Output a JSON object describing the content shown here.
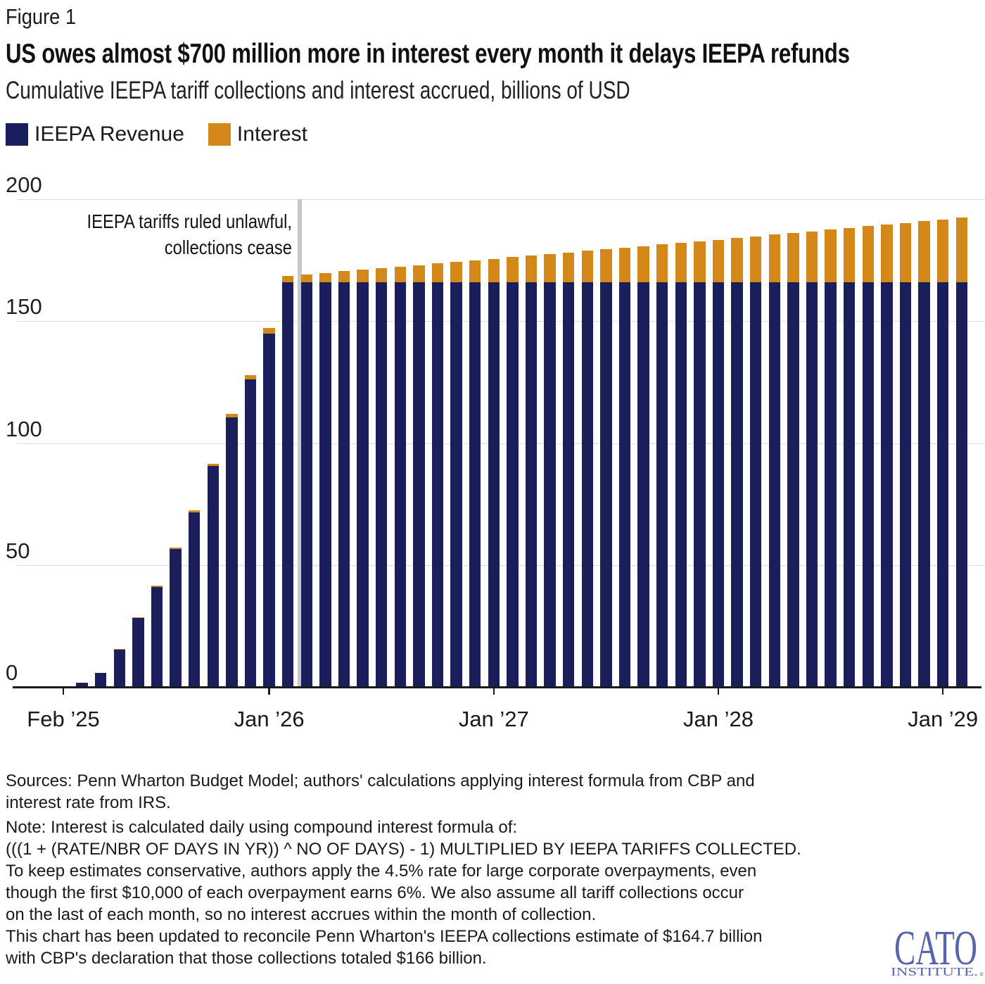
{
  "figure_label": "Figure 1",
  "title": "US owes almost $700 million more in interest every month it delays IEEPA refunds",
  "subtitle": "Cumulative IEEPA tariff collections and interest accrued, billions of USD",
  "legend": {
    "revenue_label": "IEEPA Revenue",
    "interest_label": "Interest",
    "revenue_color": "#1A1F5C",
    "interest_color": "#D4881A"
  },
  "event_line": {
    "label_line1": "IEEPA tariffs ruled unlawful,",
    "label_line2": "collections cease",
    "month_offset": 12.62,
    "color": "#C8C8C8"
  },
  "y_axis": {
    "ticks": [
      0,
      50,
      100,
      150,
      200
    ],
    "max": 200
  },
  "x_axis": {
    "ticks": [
      {
        "label": "Feb ’25",
        "month_index": 0
      },
      {
        "label": "Jan ’26",
        "month_index": 11
      },
      {
        "label": "Jan ’27",
        "month_index": 23
      },
      {
        "label": "Jan ’28",
        "month_index": 35
      },
      {
        "label": "Jan ’29",
        "month_index": 47
      }
    ]
  },
  "chart_data": {
    "type": "bar",
    "stacked": true,
    "title": "US owes almost $700 million more in interest every month it delays IEEPA refunds",
    "subtitle": "Cumulative IEEPA tariff collections and interest accrued, billions of USD",
    "ylabel": "billions of USD",
    "ylim": [
      0,
      200
    ],
    "grid": true,
    "legend_position": "top-left",
    "annotation": "IEEPA tariffs ruled unlawful, collections cease (between Feb 2026 and Mar 2026)",
    "categories": [
      "Feb 2025",
      "Mar 2025",
      "Apr 2025",
      "May 2025",
      "Jun 2025",
      "Jul 2025",
      "Aug 2025",
      "Sep 2025",
      "Oct 2025",
      "Nov 2025",
      "Dec 2025",
      "Jan 2026",
      "Feb 2026",
      "Mar 2026",
      "Apr 2026",
      "May 2026",
      "Jun 2026",
      "Jul 2026",
      "Aug 2026",
      "Sep 2026",
      "Oct 2026",
      "Nov 2026",
      "Dec 2026",
      "Jan 2027",
      "Feb 2027",
      "Mar 2027",
      "Apr 2027",
      "May 2027",
      "Jun 2027",
      "Jul 2027",
      "Aug 2027",
      "Sep 2027",
      "Oct 2027",
      "Nov 2027",
      "Dec 2027",
      "Jan 2028",
      "Feb 2028",
      "Mar 2028",
      "Apr 2028",
      "May 2028",
      "Jun 2028",
      "Jul 2028",
      "Aug 2028",
      "Sep 2028",
      "Oct 2028",
      "Nov 2028",
      "Dec 2028",
      "Jan 2029",
      "Feb 2029"
    ],
    "series": [
      {
        "name": "IEEPA Revenue",
        "color": "#1A1F5C",
        "values": [
          0.2,
          1.6,
          5.8,
          15.3,
          28.3,
          41.0,
          56.5,
          71.5,
          90.5,
          110.5,
          126.0,
          145.0,
          166,
          166,
          166,
          166,
          166,
          166,
          166,
          166,
          166,
          166,
          166,
          166,
          166,
          166,
          166,
          166,
          166,
          166,
          166,
          166,
          166,
          166,
          166,
          166,
          166,
          166,
          166,
          166,
          166,
          166,
          166,
          166,
          166,
          166,
          166,
          166,
          166
        ]
      },
      {
        "name": "Interest",
        "color": "#D4881A",
        "values": [
          0,
          0.02,
          0.06,
          0.2,
          0.35,
          0.5,
          0.65,
          0.85,
          1.1,
          1.4,
          1.75,
          2.1,
          2.6,
          3.2,
          3.8,
          4.5,
          5.1,
          5.7,
          6.4,
          7.0,
          7.6,
          8.3,
          8.9,
          9.5,
          10.2,
          10.8,
          11.5,
          12.1,
          12.8,
          13.4,
          14.1,
          14.8,
          15.4,
          16.1,
          16.8,
          17.4,
          18.1,
          18.8,
          19.5,
          20.2,
          20.8,
          21.5,
          22.2,
          22.9,
          23.6,
          24.3,
          25.0,
          25.7,
          26.4
        ]
      }
    ]
  },
  "footer": {
    "sources": "Sources: Penn Wharton Budget Model; authors' calculations applying interest formula from CBP and\ninterest rate from IRS.",
    "note": "Note: Interest is calculated daily using compound interest formula of:\n(((1 + (RATE/NBR OF DAYS IN YR)) ^ NO OF DAYS) - 1) MULTIPLIED BY IEEPA TARIFFS COLLECTED.\nTo keep estimates conservative, authors apply the 4.5% rate for large corporate overpayments, even\nthough the first $10,000 of each overpayment earns 6%. We also assume all tariff collections occur\non the last of each month, so no interest accrues within the month of collection.\nThis chart has been updated to reconcile Penn Wharton's IEEPA collections estimate of $164.7 billion\nwith CBP's declaration that those collections totaled $166 billion."
  },
  "logo": {
    "wordmark": "CATO",
    "subtext": "INSTITUTE.",
    "registered": "®",
    "color": "#5565AE"
  }
}
